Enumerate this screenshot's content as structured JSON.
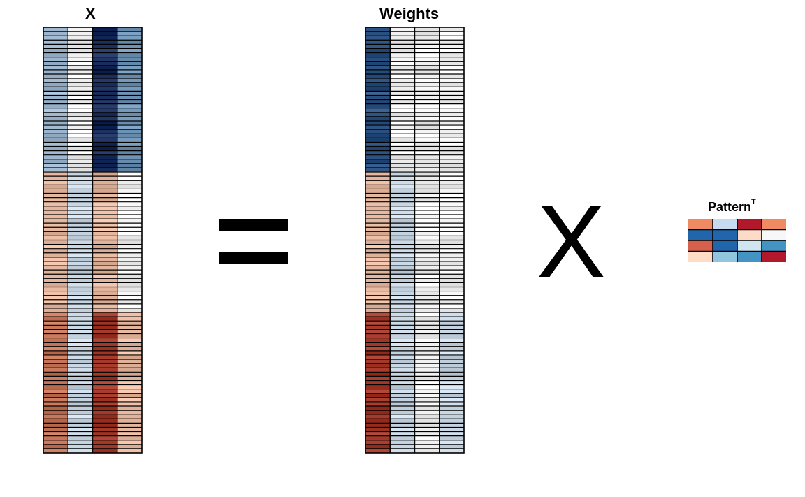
{
  "titles": {
    "x_matrix": "X",
    "weights_matrix": "Weights",
    "pattern_main": "Pattern",
    "pattern_superscript": "T"
  },
  "operators": {
    "equals": "=",
    "times": "X"
  },
  "palette": {
    "-3": "#67001f",
    "-2": "#b2182b",
    "-1": "#d6604d",
    "0": "#f4a582",
    "1": "#fddbc7",
    "2": "#f7f7f7",
    "3": "#d1e5f0",
    "4": "#92c5de",
    "5": "#4393c3",
    "6": "#2166ac",
    "7": "#053061",
    "r3": "#6e0f1a",
    "r2": "#a53a2b",
    "r1": "#c8765a",
    "r0": "#e8b9a1",
    "w": "#f2f2f2",
    "b1": "#c9d6e3",
    "b2": "#9fb8cf",
    "b3": "#6f93b5",
    "b4": "#2c5282",
    "b5": "#1a2f5e"
  },
  "matrices": {
    "x": {
      "rows": 100,
      "cols": 4,
      "blocks": [
        {
          "rows": [
            0,
            34
          ],
          "cols": [
            "b2",
            "w",
            "b5",
            "b3"
          ]
        },
        {
          "rows": [
            34,
            67
          ],
          "cols": [
            "r0",
            "b1",
            "r0",
            "w"
          ]
        },
        {
          "rows": [
            67,
            100
          ],
          "cols": [
            "r1",
            "b1",
            "r2",
            "r0"
          ]
        }
      ]
    },
    "weights": {
      "rows": 100,
      "cols": 4,
      "blocks": [
        {
          "rows": [
            0,
            34
          ],
          "cols": [
            "b4",
            "w",
            "w",
            "w"
          ]
        },
        {
          "rows": [
            34,
            67
          ],
          "cols": [
            "r0",
            "b1",
            "w",
            "w"
          ]
        },
        {
          "rows": [
            67,
            100
          ],
          "cols": [
            "r2",
            "b1",
            "w",
            "b1"
          ]
        }
      ]
    },
    "pattern": {
      "rows": 4,
      "cols": 4,
      "cells": [
        [
          "#ef8a62",
          "#c6dbef",
          "#b2182b",
          "#ef8a62"
        ],
        [
          "#2166ac",
          "#2166ac",
          "#fddbc7",
          "#f7f7f7"
        ],
        [
          "#d6604d",
          "#2166ac",
          "#d1e5f0",
          "#4393c3"
        ],
        [
          "#fddbc7",
          "#92c5de",
          "#4393c3",
          "#b2182b"
        ]
      ]
    }
  }
}
